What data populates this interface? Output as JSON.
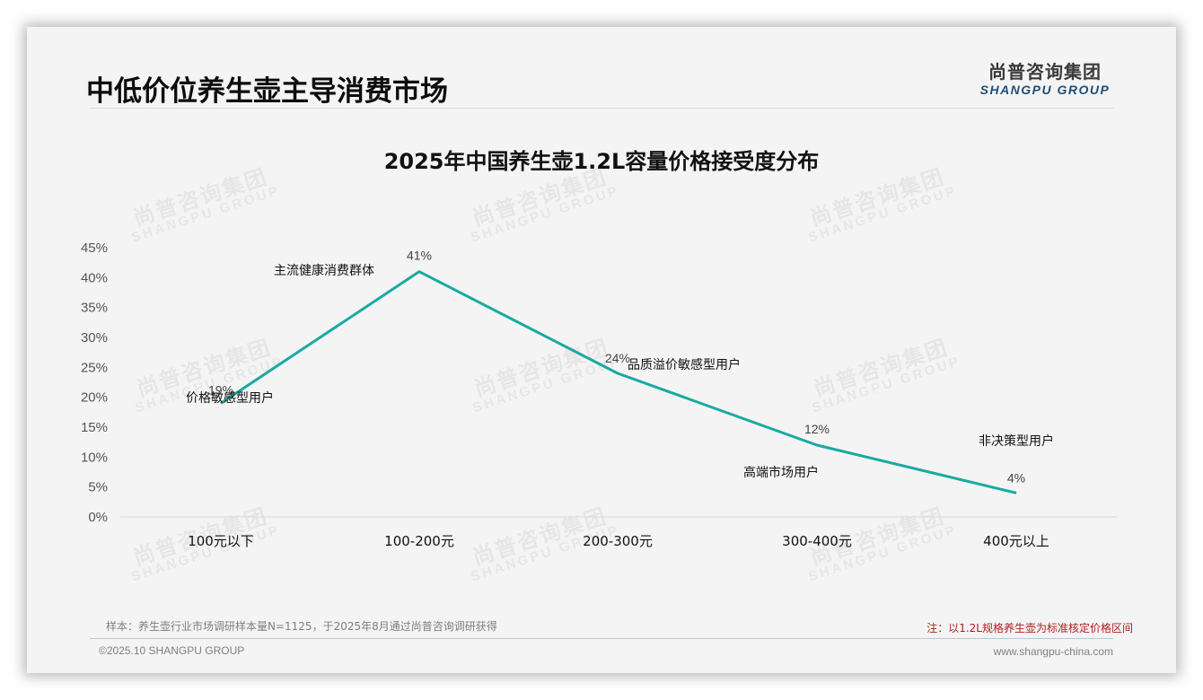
{
  "header": {
    "page_title": "中低价位养生壶主导消费市场",
    "logo_cn": "尚普咨询集团",
    "logo_en": "SHANGPU GROUP"
  },
  "watermark": {
    "cn": "尚普咨询集团",
    "en": "SHANGPU GROUP"
  },
  "chart_data": {
    "type": "line",
    "title": "2025年中国养生壶1.2L容量价格接受度分布",
    "categories": [
      "100元以下",
      "100-200元",
      "200-300元",
      "300-400元",
      "400元以上"
    ],
    "values": [
      19,
      41,
      24,
      12,
      4
    ],
    "value_labels": [
      "19%",
      "41%",
      "24%",
      "12%",
      "4%"
    ],
    "annotations": [
      "价格敏感型用户",
      "主流健康消费群体",
      "品质溢价敏感型用户",
      "高端市场用户",
      "非决策型用户"
    ],
    "xlabel": "",
    "ylabel": "",
    "ylim": [
      0,
      45
    ],
    "yticks": [
      "0%",
      "5%",
      "10%",
      "15%",
      "20%",
      "25%",
      "30%",
      "35%",
      "40%",
      "45%"
    ],
    "grid": false,
    "legend": "none",
    "line_color": "#1aa9a3"
  },
  "footer": {
    "source": "样本：养生壶行业市场调研样本量N=1125，于2025年8月通过尚普咨询调研获得",
    "note": "注：以1.2L规格养生壶为标准核定价格区间",
    "copyright": "©2025.10 SHANGPU GROUP",
    "website": "www.shangpu-china.com"
  }
}
